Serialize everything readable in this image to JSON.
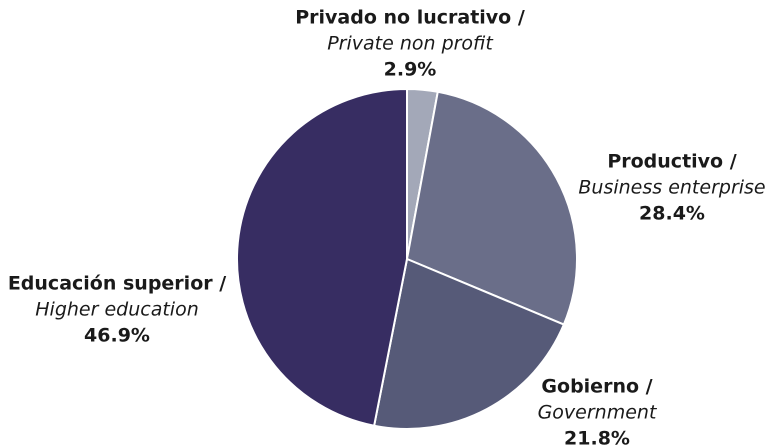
{
  "chart_data": {
    "type": "pie",
    "categories": [
      "Privado no lucrativo /",
      "Productivo /",
      "Gobierno /",
      "Educación superior /"
    ],
    "subcategories": [
      "Private non profit",
      "Business enterprise",
      "Government",
      "Higher education"
    ],
    "values": [
      2.9,
      28.4,
      21.8,
      46.9
    ],
    "value_labels": [
      "2.9%",
      "28.4%",
      "21.8%",
      "46.9%"
    ],
    "colors": [
      "#a3a8b8",
      "#6a6e89",
      "#565a78",
      "#372d62"
    ]
  }
}
